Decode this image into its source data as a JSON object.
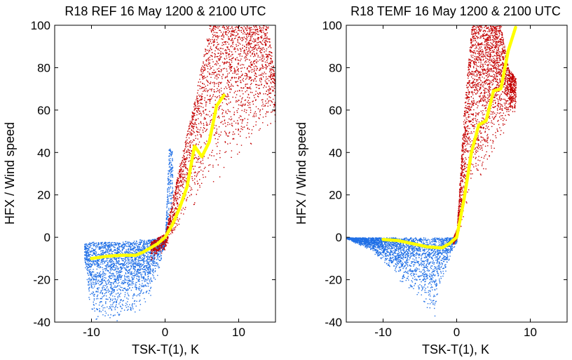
{
  "figure": {
    "colors": {
      "negative_points": "#1f6fe6",
      "positive_points": "#c40000",
      "mean_line": "#ffff00",
      "axes": "#000000",
      "background": "#ffffff"
    }
  },
  "chart_data": [
    {
      "type": "scatter",
      "title": "R18 REF 16 May 1200 & 2100 UTC",
      "xlabel": "TSK-T(1), K",
      "ylabel": "HFX / Wind speed",
      "xlim": [
        -15,
        15
      ],
      "ylim": [
        -40,
        100
      ],
      "xticks": [
        -10,
        0,
        10
      ],
      "yticks": [
        -40,
        -20,
        0,
        20,
        40,
        60,
        80,
        100
      ],
      "grid": false,
      "series": [
        {
          "color": "#1f6fe6",
          "marker": "dot",
          "envelope": {
            "x": [
              -11,
              -10,
              -8,
              -6,
              -4,
              -2,
              -1,
              0,
              0.5,
              1
            ],
            "y_min": [
              -12,
              -40,
              -40,
              -40,
              -38,
              -28,
              -18,
              -3,
              5,
              10
            ],
            "y_max": [
              -3,
              -2,
              -2,
              -2,
              -1,
              -1,
              0,
              0,
              44,
              40
            ]
          }
        },
        {
          "color": "#c40000",
          "marker": "dot",
          "envelope": {
            "x": [
              -2,
              0,
              2,
              4,
              6,
              8,
              10,
              12,
              14,
              15
            ],
            "y_min": [
              -12,
              -6,
              5,
              15,
              22,
              28,
              35,
              42,
              50,
              52
            ],
            "y_max": [
              -2,
              2,
              35,
              65,
              100,
              100,
              100,
              100,
              100,
              72
            ]
          }
        },
        {
          "color": "#ffff00",
          "mode": "line",
          "x": [
            -10,
            -8,
            -6,
            -4,
            -3,
            -2,
            -1,
            0,
            1,
            2,
            3,
            4,
            5,
            6,
            7,
            8
          ],
          "y": [
            -10,
            -9,
            -8.5,
            -8.5,
            -7,
            -5,
            -3,
            0,
            6,
            14,
            24,
            43,
            38,
            45,
            62,
            67
          ]
        }
      ]
    },
    {
      "type": "scatter",
      "title": "R18 TEMF 16 May 1200 & 2100 UTC",
      "xlabel": "TSK-T(1), K",
      "ylabel": "HFX / Wind speed",
      "xlim": [
        -15,
        15
      ],
      "ylim": [
        -40,
        100
      ],
      "xticks": [
        -10,
        0,
        10
      ],
      "yticks": [
        -40,
        -20,
        0,
        20,
        40,
        60,
        80,
        100
      ],
      "grid": false,
      "series": [
        {
          "color": "#1f6fe6",
          "marker": "dot",
          "envelope": {
            "x": [
              -15,
              -12,
              -10,
              -8,
              -6,
              -4,
              -3,
              -2,
              -1,
              0
            ],
            "y_min": [
              -0.5,
              -6,
              -12,
              -20,
              -28,
              -36,
              -38,
              -22,
              -10,
              -2
            ],
            "y_max": [
              0,
              0,
              0,
              0,
              0,
              0,
              0,
              0,
              0,
              0
            ]
          }
        },
        {
          "color": "#c40000",
          "marker": "dot",
          "envelope": {
            "x": [
              -0.5,
              0,
              1,
              2,
              3,
              4,
              5,
              6,
              7,
              8
            ],
            "y_min": [
              -4,
              -1,
              8,
              22,
              20,
              30,
              38,
              46,
              54,
              60
            ],
            "y_max": [
              0,
              4,
              62,
              100,
              100,
              100,
              100,
              100,
              80,
              75
            ]
          }
        },
        {
          "color": "#ffff00",
          "mode": "line",
          "x": [
            -10,
            -8,
            -6,
            -4,
            -2,
            -1,
            0,
            1,
            2,
            3,
            4,
            5,
            6,
            7,
            8
          ],
          "y": [
            -1,
            -1.5,
            -3,
            -4.5,
            -5,
            -3,
            0,
            18,
            40,
            53,
            55,
            69,
            70,
            88,
            99
          ]
        }
      ]
    }
  ]
}
